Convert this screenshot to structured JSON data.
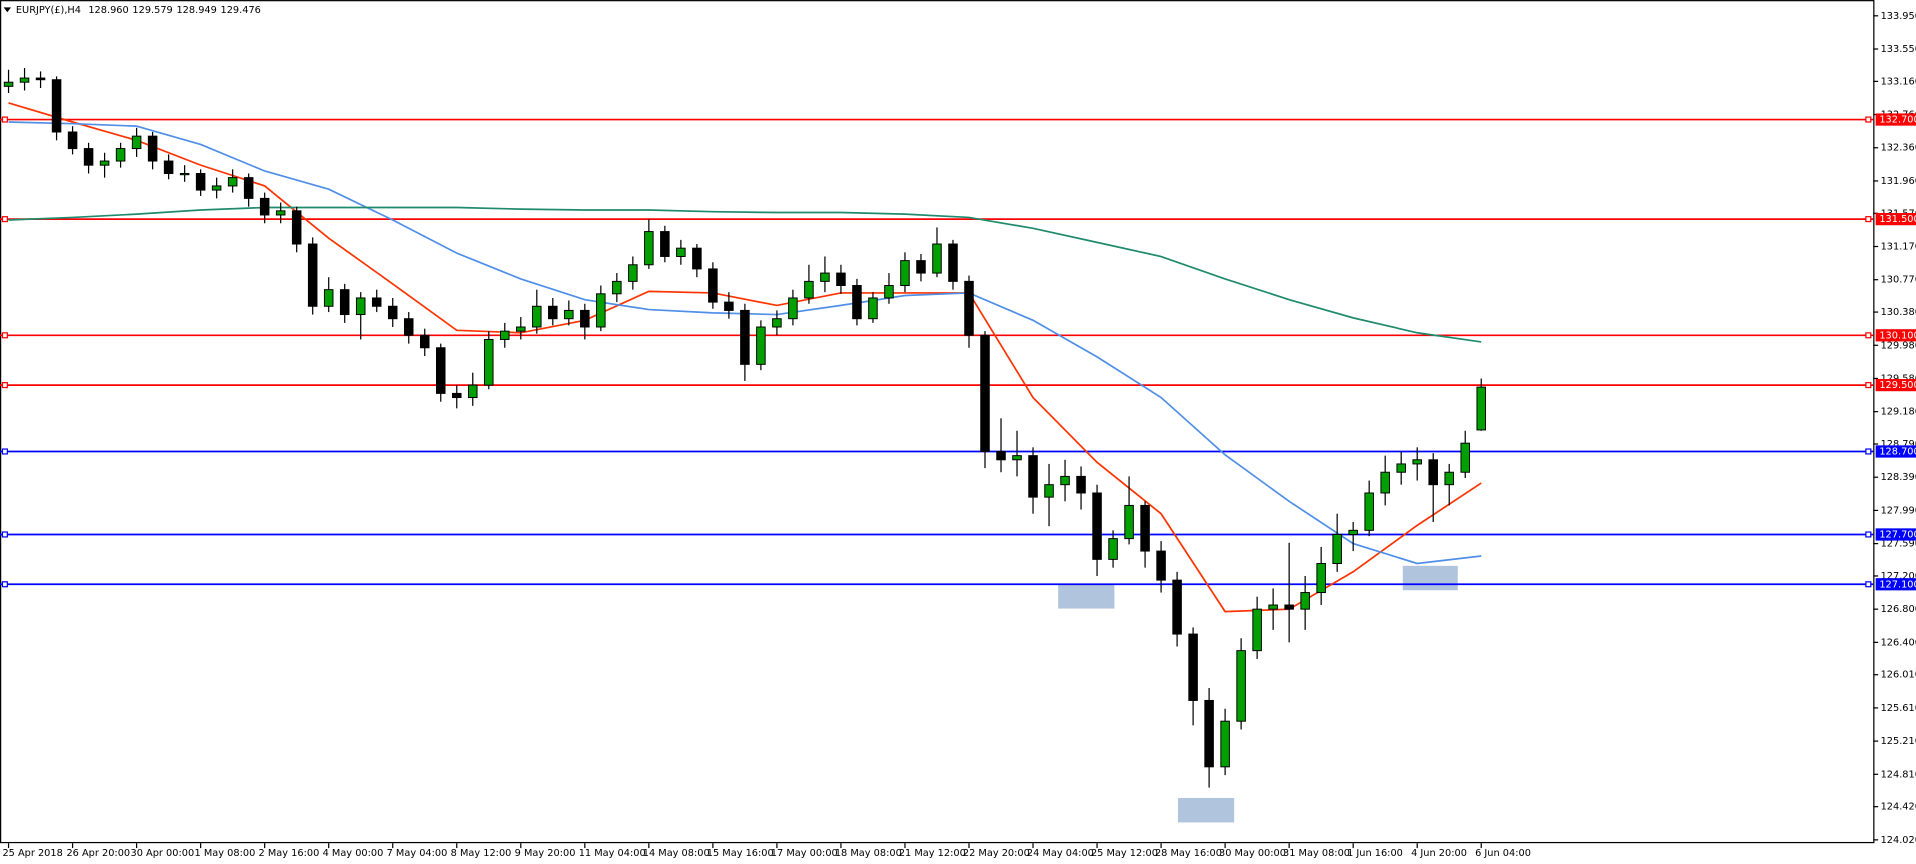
{
  "chart_data": {
    "type": "candlestick",
    "symbol": "EURJPY(£),H4",
    "last_value_labels": [
      "128.960",
      "129.579",
      "128.949",
      "129.476"
    ],
    "categories": [
      "25 Apr 2018",
      null,
      null,
      null,
      "26 Apr 20:00",
      null,
      null,
      null,
      "30 Apr 00:00",
      null,
      null,
      null,
      "1 May 08:00",
      null,
      null,
      null,
      "2 May 16:00",
      null,
      null,
      null,
      "4 May 00:00",
      null,
      null,
      null,
      "7 May 04:00",
      null,
      null,
      null,
      "8 May 12:00",
      null,
      null,
      null,
      "9 May 20:00",
      null,
      null,
      null,
      "11 May 04:00",
      null,
      null,
      null,
      "14 May 08:00",
      null,
      null,
      null,
      "15 May 16:00",
      null,
      null,
      null,
      "17 May 00:00",
      null,
      null,
      null,
      "18 May 08:00",
      null,
      null,
      null,
      "21 May 12:00",
      null,
      null,
      null,
      "22 May 20:00",
      null,
      null,
      null,
      "24 May 04:00",
      null,
      null,
      null,
      "25 May 12:00",
      null,
      null,
      null,
      "28 May 16:00",
      null,
      null,
      null,
      "30 May 00:00",
      null,
      null,
      null,
      "31 May 08:00",
      null,
      null,
      null,
      "1 Jun 16:00",
      null,
      null,
      null,
      "4 Jun 20:00",
      null,
      null,
      null,
      "6 Jun 04:00"
    ],
    "ohlc": [
      [
        133.1,
        133.3,
        133.02,
        133.15
      ],
      [
        133.15,
        133.32,
        133.05,
        133.2
      ],
      [
        133.2,
        133.28,
        133.08,
        133.18
      ],
      [
        133.18,
        133.22,
        132.45,
        132.55
      ],
      [
        132.55,
        132.62,
        132.28,
        132.35
      ],
      [
        132.35,
        132.42,
        132.05,
        132.15
      ],
      [
        132.15,
        132.3,
        132.0,
        132.2
      ],
      [
        132.2,
        132.42,
        132.12,
        132.35
      ],
      [
        132.35,
        132.6,
        132.25,
        132.5
      ],
      [
        132.5,
        132.55,
        132.1,
        132.2
      ],
      [
        132.2,
        132.28,
        131.98,
        132.05
      ],
      [
        132.05,
        132.15,
        131.95,
        132.05
      ],
      [
        132.05,
        132.1,
        131.78,
        131.85
      ],
      [
        131.85,
        132.0,
        131.75,
        131.9
      ],
      [
        131.9,
        132.1,
        131.82,
        132.0
      ],
      [
        132.0,
        132.05,
        131.65,
        131.75
      ],
      [
        131.75,
        131.82,
        131.45,
        131.55
      ],
      [
        131.55,
        131.7,
        131.45,
        131.6
      ],
      [
        131.6,
        131.65,
        131.1,
        131.2
      ],
      [
        131.2,
        131.28,
        130.35,
        130.45
      ],
      [
        130.45,
        130.8,
        130.38,
        130.65
      ],
      [
        130.65,
        130.72,
        130.25,
        130.35
      ],
      [
        130.35,
        130.62,
        130.05,
        130.55
      ],
      [
        130.55,
        130.65,
        130.38,
        130.45
      ],
      [
        130.45,
        130.55,
        130.2,
        130.3
      ],
      [
        130.3,
        130.38,
        130.0,
        130.1
      ],
      [
        130.1,
        130.18,
        129.85,
        129.95
      ],
      [
        129.95,
        130.0,
        129.3,
        129.4
      ],
      [
        129.4,
        129.5,
        129.22,
        129.35
      ],
      [
        129.35,
        129.65,
        129.25,
        129.5
      ],
      [
        129.5,
        130.15,
        129.45,
        130.05
      ],
      [
        130.05,
        130.25,
        129.95,
        130.15
      ],
      [
        130.15,
        130.32,
        130.05,
        130.2
      ],
      [
        130.2,
        130.65,
        130.12,
        130.45
      ],
      [
        130.45,
        130.55,
        130.22,
        130.3
      ],
      [
        130.3,
        130.52,
        130.22,
        130.4
      ],
      [
        130.4,
        130.48,
        130.05,
        130.2
      ],
      [
        130.2,
        130.7,
        130.15,
        130.6
      ],
      [
        130.6,
        130.85,
        130.5,
        130.75
      ],
      [
        130.75,
        131.05,
        130.65,
        130.95
      ],
      [
        130.95,
        131.5,
        130.9,
        131.35
      ],
      [
        131.35,
        131.42,
        130.98,
        131.05
      ],
      [
        131.05,
        131.25,
        130.95,
        131.15
      ],
      [
        131.15,
        131.2,
        130.8,
        130.9
      ],
      [
        130.9,
        130.98,
        130.42,
        130.5
      ],
      [
        130.5,
        130.62,
        130.3,
        130.4
      ],
      [
        130.4,
        130.48,
        129.55,
        129.75
      ],
      [
        129.75,
        130.28,
        129.68,
        130.2
      ],
      [
        130.2,
        130.4,
        130.1,
        130.3
      ],
      [
        130.3,
        130.65,
        130.22,
        130.55
      ],
      [
        130.55,
        130.95,
        130.48,
        130.75
      ],
      [
        130.75,
        131.05,
        130.62,
        130.85
      ],
      [
        130.85,
        130.95,
        130.6,
        130.7
      ],
      [
        130.7,
        130.78,
        130.22,
        130.3
      ],
      [
        130.3,
        130.62,
        130.25,
        130.55
      ],
      [
        130.55,
        130.85,
        130.48,
        130.7
      ],
      [
        130.7,
        131.1,
        130.62,
        131.0
      ],
      [
        131.0,
        131.08,
        130.75,
        130.85
      ],
      [
        130.85,
        131.4,
        130.8,
        131.2
      ],
      [
        131.2,
        131.25,
        130.65,
        130.75
      ],
      [
        130.75,
        130.82,
        129.95,
        130.1
      ],
      [
        130.1,
        130.15,
        128.5,
        128.7
      ],
      [
        128.7,
        129.1,
        128.45,
        128.6
      ],
      [
        128.6,
        128.95,
        128.4,
        128.65
      ],
      [
        128.65,
        128.75,
        127.95,
        128.15
      ],
      [
        128.15,
        128.55,
        127.8,
        128.3
      ],
      [
        128.3,
        128.6,
        128.1,
        128.4
      ],
      [
        128.4,
        128.52,
        128.0,
        128.2
      ],
      [
        128.2,
        128.3,
        127.2,
        127.4
      ],
      [
        127.4,
        127.75,
        127.3,
        127.65
      ],
      [
        127.65,
        128.4,
        127.58,
        128.05
      ],
      [
        128.05,
        128.1,
        127.3,
        127.5
      ],
      [
        127.5,
        127.62,
        127.0,
        127.15
      ],
      [
        127.15,
        127.25,
        126.35,
        126.5
      ],
      [
        126.5,
        126.58,
        125.4,
        125.7
      ],
      [
        125.7,
        125.85,
        124.65,
        124.9
      ],
      [
        124.9,
        125.6,
        124.8,
        125.45
      ],
      [
        125.45,
        126.45,
        125.35,
        126.3
      ],
      [
        126.3,
        126.95,
        126.2,
        126.8
      ],
      [
        126.8,
        127.05,
        126.55,
        126.85
      ],
      [
        126.85,
        127.6,
        126.4,
        126.8
      ],
      [
        126.8,
        127.2,
        126.55,
        127.0
      ],
      [
        127.0,
        127.55,
        126.85,
        127.35
      ],
      [
        127.35,
        127.95,
        127.25,
        127.7
      ],
      [
        127.7,
        127.85,
        127.5,
        127.75
      ],
      [
        127.75,
        128.35,
        127.68,
        128.2
      ],
      [
        128.2,
        128.65,
        128.05,
        128.45
      ],
      [
        128.45,
        128.7,
        128.3,
        128.55
      ],
      [
        128.55,
        128.75,
        128.35,
        128.6
      ],
      [
        128.6,
        128.68,
        127.85,
        128.3
      ],
      [
        128.3,
        128.55,
        128.05,
        128.45
      ],
      [
        128.45,
        128.95,
        128.38,
        128.8
      ],
      [
        128.96,
        129.579,
        128.949,
        129.476
      ]
    ],
    "up_color": "#00a000",
    "down_color": "#000000",
    "ma": [
      {
        "color": "#ff3300",
        "x": [
          0,
          4,
          8,
          12,
          16,
          20,
          24,
          28,
          32,
          36,
          40,
          44,
          48,
          52,
          56,
          60,
          64,
          68,
          72,
          76,
          80,
          84,
          88,
          92
        ],
        "values": [
          132.9,
          132.67,
          132.45,
          132.15,
          131.9,
          131.27,
          130.72,
          130.16,
          130.13,
          130.28,
          130.63,
          130.61,
          130.46,
          130.61,
          130.61,
          130.61,
          129.35,
          128.57,
          127.95,
          126.77,
          126.8,
          127.25,
          127.81,
          128.32
        ]
      },
      {
        "color": "#4f8fe8",
        "x": [
          0,
          4,
          8,
          12,
          16,
          20,
          24,
          28,
          32,
          36,
          40,
          44,
          48,
          52,
          56,
          60,
          64,
          68,
          72,
          76,
          80,
          84,
          88,
          92
        ],
        "values": [
          132.67,
          132.65,
          132.62,
          132.4,
          132.08,
          131.86,
          131.49,
          131.09,
          130.78,
          130.53,
          130.41,
          130.37,
          130.35,
          130.46,
          130.58,
          130.61,
          130.28,
          129.84,
          129.35,
          128.66,
          128.1,
          127.59,
          127.35,
          127.44
        ]
      },
      {
        "color": "#1f8a6e",
        "x": [
          0,
          4,
          8,
          12,
          16,
          20,
          24,
          28,
          32,
          36,
          40,
          44,
          48,
          52,
          56,
          60,
          64,
          68,
          72,
          76,
          80,
          84,
          88,
          92
        ],
        "values": [
          131.49,
          131.52,
          131.56,
          131.61,
          131.64,
          131.64,
          131.64,
          131.64,
          131.62,
          131.61,
          131.61,
          131.59,
          131.58,
          131.58,
          131.56,
          131.52,
          131.39,
          131.22,
          131.05,
          130.78,
          130.53,
          130.31,
          130.13,
          130.02
        ]
      }
    ],
    "levels": [
      {
        "value": 132.7,
        "label": "132.700",
        "color": "#ff0000"
      },
      {
        "value": 131.5,
        "label": "131.500",
        "color": "#ff0000"
      },
      {
        "value": 130.1,
        "label": "130.100",
        "color": "#ff0000"
      },
      {
        "value": 129.5,
        "label": "129.500",
        "color": "#ff0000"
      },
      {
        "value": 128.7,
        "label": "128.700",
        "color": "#0000ff"
      },
      {
        "value": 127.7,
        "label": "127.700",
        "color": "#0000ff"
      },
      {
        "value": 127.1,
        "label": "127.100",
        "color": "#0000ff"
      }
    ],
    "ylim": [
      123.98,
      134.14
    ],
    "yticks": [
      {
        "value": 133.95,
        "label": "133.950"
      },
      {
        "value": 133.55,
        "label": "133.550"
      },
      {
        "value": 133.16,
        "label": "133.160"
      },
      {
        "value": 132.76,
        "label": "132.760"
      },
      {
        "value": 132.36,
        "label": "132.360"
      },
      {
        "value": 131.96,
        "label": "131.960"
      },
      {
        "value": 131.57,
        "label": "131.570"
      },
      {
        "value": 131.17,
        "label": "131.170"
      },
      {
        "value": 130.77,
        "label": "130.770"
      },
      {
        "value": 130.38,
        "label": "130.380"
      },
      {
        "value": 129.98,
        "label": "129.980"
      },
      {
        "value": 129.58,
        "label": "129.580"
      },
      {
        "value": 129.18,
        "label": "129.180"
      },
      {
        "value": 128.79,
        "label": "128.790"
      },
      {
        "value": 128.39,
        "label": "128.390"
      },
      {
        "value": 127.99,
        "label": "127.990"
      },
      {
        "value": 127.59,
        "label": "127.590"
      },
      {
        "value": 127.2,
        "label": "127.200"
      },
      {
        "value": 126.8,
        "label": "126.800"
      },
      {
        "value": 126.4,
        "label": "126.400"
      },
      {
        "value": 126.01,
        "label": "126.010"
      },
      {
        "value": 125.61,
        "label": "125.610"
      },
      {
        "value": 125.21,
        "label": "125.210"
      },
      {
        "value": 124.81,
        "label": "124.810"
      },
      {
        "value": 124.42,
        "label": "124.420"
      },
      {
        "value": 124.02,
        "label": "124.020"
      }
    ]
  }
}
